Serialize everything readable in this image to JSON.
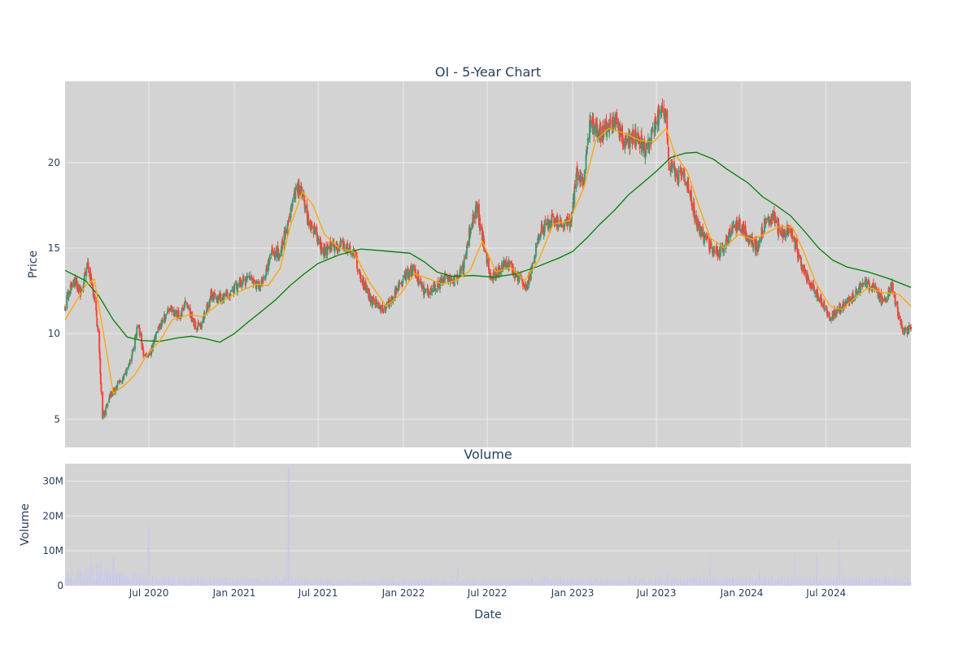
{
  "chart_data": [
    {
      "type": "candlestick",
      "title": "OI - 5-Year Chart",
      "ylabel": "Price",
      "ylim": [
        3.35,
        24.75
      ],
      "yticks": [
        5,
        10,
        15,
        20
      ],
      "xlim": [
        "2020-01-02",
        "2024-12-31"
      ],
      "grid": true,
      "colors": {
        "increasing": "#3d9970",
        "decreasing": "#ff4136",
        "ma_short": "#ffa500",
        "ma_long": "#008000",
        "plot_bg": "#d3d3d3",
        "grid": "#ebebeb"
      },
      "price_path": [
        [
          "2020-01-02",
          11.6
        ],
        [
          "2020-01-20",
          13.2
        ],
        [
          "2020-02-05",
          12.4
        ],
        [
          "2020-02-20",
          14.0
        ],
        [
          "2020-03-05",
          12.2
        ],
        [
          "2020-03-15",
          9.5
        ],
        [
          "2020-03-23",
          5.0
        ],
        [
          "2020-04-05",
          6.2
        ],
        [
          "2020-04-20",
          6.8
        ],
        [
          "2020-05-10",
          7.5
        ],
        [
          "2020-05-25",
          8.8
        ],
        [
          "2020-06-08",
          10.6
        ],
        [
          "2020-06-20",
          8.6
        ],
        [
          "2020-07-05",
          9.0
        ],
        [
          "2020-07-25",
          10.5
        ],
        [
          "2020-08-15",
          11.5
        ],
        [
          "2020-09-05",
          11.0
        ],
        [
          "2020-09-20",
          11.8
        ],
        [
          "2020-10-10",
          10.3
        ],
        [
          "2020-10-25",
          10.7
        ],
        [
          "2020-11-12",
          12.3
        ],
        [
          "2020-12-05",
          12.0
        ],
        [
          "2020-12-25",
          12.4
        ],
        [
          "2021-01-15",
          13.0
        ],
        [
          "2021-02-05",
          13.2
        ],
        [
          "2021-02-25",
          12.6
        ],
        [
          "2021-03-10",
          13.6
        ],
        [
          "2021-03-25",
          14.9
        ],
        [
          "2021-04-10",
          14.6
        ],
        [
          "2021-04-25",
          16.5
        ],
        [
          "2021-05-10",
          18.2
        ],
        [
          "2021-05-25",
          18.5
        ],
        [
          "2021-06-08",
          16.8
        ],
        [
          "2021-06-25",
          16.0
        ],
        [
          "2021-07-10",
          14.8
        ],
        [
          "2021-08-01",
          15.0
        ],
        [
          "2021-08-20",
          15.3
        ],
        [
          "2021-09-15",
          14.8
        ],
        [
          "2021-10-05",
          13.0
        ],
        [
          "2021-10-25",
          11.9
        ],
        [
          "2021-11-20",
          11.4
        ],
        [
          "2021-12-10",
          12.2
        ],
        [
          "2022-01-05",
          13.4
        ],
        [
          "2022-01-25",
          13.8
        ],
        [
          "2022-02-15",
          12.3
        ],
        [
          "2022-03-10",
          12.7
        ],
        [
          "2022-04-01",
          13.2
        ],
        [
          "2022-04-20",
          13.0
        ],
        [
          "2022-05-10",
          13.8
        ],
        [
          "2022-05-28",
          16.6
        ],
        [
          "2022-06-08",
          17.4
        ],
        [
          "2022-06-25",
          15.0
        ],
        [
          "2022-07-10",
          13.2
        ],
        [
          "2022-07-25",
          13.6
        ],
        [
          "2022-08-10",
          14.3
        ],
        [
          "2022-09-01",
          13.4
        ],
        [
          "2022-09-25",
          12.8
        ],
        [
          "2022-10-10",
          14.5
        ],
        [
          "2022-10-25",
          16.2
        ],
        [
          "2022-11-15",
          16.6
        ],
        [
          "2022-12-10",
          16.5
        ],
        [
          "2022-12-28",
          16.6
        ],
        [
          "2023-01-10",
          19.3
        ],
        [
          "2023-01-25",
          18.8
        ],
        [
          "2023-02-08",
          22.5
        ],
        [
          "2023-02-25",
          21.6
        ],
        [
          "2023-03-15",
          22.0
        ],
        [
          "2023-04-05",
          22.4
        ],
        [
          "2023-04-25",
          21.0
        ],
        [
          "2023-05-15",
          21.6
        ],
        [
          "2023-06-05",
          20.8
        ],
        [
          "2023-06-20",
          21.5
        ],
        [
          "2023-07-05",
          22.8
        ],
        [
          "2023-07-20",
          23.0
        ],
        [
          "2023-07-28",
          20.0
        ],
        [
          "2023-08-15",
          19.3
        ],
        [
          "2023-09-05",
          19.0
        ],
        [
          "2023-09-25",
          16.5
        ],
        [
          "2023-10-10",
          15.6
        ],
        [
          "2023-10-28",
          15.0
        ],
        [
          "2023-11-15",
          14.7
        ],
        [
          "2023-12-05",
          15.8
        ],
        [
          "2023-12-25",
          16.5
        ],
        [
          "2024-01-15",
          15.6
        ],
        [
          "2024-02-05",
          15.0
        ],
        [
          "2024-02-20",
          16.6
        ],
        [
          "2024-03-10",
          16.8
        ],
        [
          "2024-03-25",
          15.8
        ],
        [
          "2024-04-10",
          16.2
        ],
        [
          "2024-04-28",
          15.0
        ],
        [
          "2024-05-15",
          13.5
        ],
        [
          "2024-06-01",
          12.8
        ],
        [
          "2024-06-20",
          11.9
        ],
        [
          "2024-07-10",
          10.9
        ],
        [
          "2024-07-25",
          11.4
        ],
        [
          "2024-08-15",
          11.8
        ],
        [
          "2024-09-05",
          12.5
        ],
        [
          "2024-09-25",
          12.9
        ],
        [
          "2024-10-15",
          12.6
        ],
        [
          "2024-11-01",
          11.7
        ],
        [
          "2024-11-20",
          12.8
        ],
        [
          "2024-12-05",
          11.0
        ],
        [
          "2024-12-15",
          10.1
        ],
        [
          "2024-12-31",
          10.3
        ]
      ],
      "ma_short_path": [
        [
          "2020-01-02",
          10.8
        ],
        [
          "2020-02-15",
          12.8
        ],
        [
          "2020-03-05",
          13.2
        ],
        [
          "2020-03-25",
          10.0
        ],
        [
          "2020-04-15",
          6.5
        ],
        [
          "2020-05-10",
          7.0
        ],
        [
          "2020-06-01",
          7.6
        ],
        [
          "2020-06-25",
          8.7
        ],
        [
          "2020-07-25",
          9.6
        ],
        [
          "2020-08-20",
          10.8
        ],
        [
          "2020-09-25",
          11.1
        ],
        [
          "2020-10-25",
          11.0
        ],
        [
          "2020-12-01",
          11.8
        ],
        [
          "2021-01-15",
          12.5
        ],
        [
          "2021-02-20",
          12.9
        ],
        [
          "2021-03-15",
          12.8
        ],
        [
          "2021-04-10",
          13.8
        ],
        [
          "2021-05-01",
          16.2
        ],
        [
          "2021-05-28",
          18.3
        ],
        [
          "2021-06-20",
          17.5
        ],
        [
          "2021-07-15",
          15.8
        ],
        [
          "2021-08-15",
          15.0
        ],
        [
          "2021-09-15",
          14.8
        ],
        [
          "2021-10-20",
          13.0
        ],
        [
          "2021-11-25",
          11.6
        ],
        [
          "2021-12-25",
          12.3
        ],
        [
          "2022-01-25",
          13.5
        ],
        [
          "2022-02-25",
          13.2
        ],
        [
          "2022-03-25",
          12.9
        ],
        [
          "2022-04-25",
          13.1
        ],
        [
          "2022-05-25",
          13.7
        ],
        [
          "2022-06-20",
          15.4
        ],
        [
          "2022-07-20",
          13.6
        ],
        [
          "2022-08-20",
          13.9
        ],
        [
          "2022-09-20",
          13.1
        ],
        [
          "2022-10-20",
          14.3
        ],
        [
          "2022-11-20",
          16.4
        ],
        [
          "2022-12-25",
          16.6
        ],
        [
          "2023-01-25",
          18.5
        ],
        [
          "2023-02-20",
          21.3
        ],
        [
          "2023-03-20",
          22.0
        ],
        [
          "2023-04-25",
          21.7
        ],
        [
          "2023-05-25",
          21.3
        ],
        [
          "2023-06-25",
          21.2
        ],
        [
          "2023-07-22",
          22.0
        ],
        [
          "2023-08-10",
          20.5
        ],
        [
          "2023-09-05",
          19.5
        ],
        [
          "2023-09-30",
          17.5
        ],
        [
          "2023-10-25",
          15.6
        ],
        [
          "2023-11-25",
          15.0
        ],
        [
          "2023-12-25",
          15.8
        ],
        [
          "2024-01-25",
          15.5
        ],
        [
          "2024-02-25",
          15.9
        ],
        [
          "2024-03-25",
          16.3
        ],
        [
          "2024-04-20",
          16.2
        ],
        [
          "2024-05-15",
          14.7
        ],
        [
          "2024-06-10",
          12.9
        ],
        [
          "2024-07-10",
          11.6
        ],
        [
          "2024-08-05",
          11.4
        ],
        [
          "2024-09-01",
          12.1
        ],
        [
          "2024-10-01",
          12.7
        ],
        [
          "2024-11-01",
          12.4
        ],
        [
          "2024-12-05",
          12.3
        ],
        [
          "2024-12-31",
          11.6
        ]
      ],
      "ma_long_path": [
        [
          "2020-01-02",
          13.7
        ],
        [
          "2020-02-15",
          13.1
        ],
        [
          "2020-03-15",
          12.2
        ],
        [
          "2020-04-15",
          10.8
        ],
        [
          "2020-05-15",
          9.8
        ],
        [
          "2020-06-15",
          9.6
        ],
        [
          "2020-07-25",
          9.55
        ],
        [
          "2020-09-01",
          9.75
        ],
        [
          "2020-10-01",
          9.85
        ],
        [
          "2020-11-01",
          9.7
        ],
        [
          "2020-12-01",
          9.5
        ],
        [
          "2021-01-01",
          10.0
        ],
        [
          "2021-02-01",
          10.7
        ],
        [
          "2021-03-01",
          11.3
        ],
        [
          "2021-04-01",
          12.0
        ],
        [
          "2021-05-01",
          12.8
        ],
        [
          "2021-06-01",
          13.5
        ],
        [
          "2021-07-01",
          14.1
        ],
        [
          "2021-08-15",
          14.6
        ],
        [
          "2021-10-01",
          14.95
        ],
        [
          "2021-11-15",
          14.85
        ],
        [
          "2022-01-15",
          14.7
        ],
        [
          "2022-02-15",
          14.2
        ],
        [
          "2022-03-15",
          13.6
        ],
        [
          "2022-04-15",
          13.35
        ],
        [
          "2022-06-01",
          13.4
        ],
        [
          "2022-07-15",
          13.3
        ],
        [
          "2022-09-01",
          13.5
        ],
        [
          "2022-10-15",
          13.9
        ],
        [
          "2022-12-01",
          14.4
        ],
        [
          "2023-01-01",
          14.8
        ],
        [
          "2023-02-01",
          15.6
        ],
        [
          "2023-03-01",
          16.4
        ],
        [
          "2023-04-01",
          17.2
        ],
        [
          "2023-05-01",
          18.1
        ],
        [
          "2023-06-01",
          18.8
        ],
        [
          "2023-07-01",
          19.5
        ],
        [
          "2023-08-01",
          20.3
        ],
        [
          "2023-09-01",
          20.55
        ],
        [
          "2023-09-25",
          20.6
        ],
        [
          "2023-11-01",
          20.2
        ],
        [
          "2023-12-01",
          19.6
        ],
        [
          "2024-01-15",
          18.8
        ],
        [
          "2024-02-15",
          18.0
        ],
        [
          "2024-03-15",
          17.5
        ],
        [
          "2024-04-15",
          16.9
        ],
        [
          "2024-05-15",
          16.0
        ],
        [
          "2024-06-15",
          15.0
        ],
        [
          "2024-07-15",
          14.3
        ],
        [
          "2024-08-15",
          13.9
        ],
        [
          "2024-10-01",
          13.6
        ],
        [
          "2024-11-15",
          13.2
        ],
        [
          "2024-12-31",
          12.7
        ]
      ]
    },
    {
      "type": "bar",
      "title": "Volume",
      "xlabel": "Date",
      "ylabel": "Volume",
      "ylim": [
        0,
        35000000
      ],
      "yticks": [
        0,
        10000000,
        20000000,
        30000000
      ],
      "ytick_labels": [
        "0",
        "10M",
        "20M",
        "30M"
      ],
      "xticks": [
        "2020-07-01",
        "2021-01-01",
        "2021-07-01",
        "2022-01-01",
        "2022-07-01",
        "2023-01-01",
        "2023-07-01",
        "2024-01-01",
        "2024-07-01"
      ],
      "xtick_labels": [
        "Jul 2020",
        "Jan 2021",
        "Jul 2021",
        "Jan 2022",
        "Jul 2022",
        "Jan 2023",
        "Jul 2023",
        "Jan 2024",
        "Jul 2024"
      ],
      "grid": true,
      "bar_color": "#c8c8f0",
      "baseline_path": [
        [
          "2020-01-02",
          2800000
        ],
        [
          "2020-03-01",
          4000000
        ],
        [
          "2020-04-15",
          3200000
        ],
        [
          "2020-07-01",
          2000000
        ],
        [
          "2021-01-01",
          1600000
        ],
        [
          "2021-04-01",
          1700000
        ],
        [
          "2021-07-01",
          1300000
        ],
        [
          "2022-01-01",
          1300000
        ],
        [
          "2022-07-01",
          1400000
        ],
        [
          "2022-11-01",
          1700000
        ],
        [
          "2023-03-01",
          1400000
        ],
        [
          "2023-07-01",
          1400000
        ],
        [
          "2023-10-15",
          1900000
        ],
        [
          "2024-01-01",
          1800000
        ],
        [
          "2024-04-01",
          1900000
        ],
        [
          "2024-07-01",
          1800000
        ],
        [
          "2024-12-31",
          1700000
        ]
      ],
      "spikes": [
        [
          "2020-02-25",
          5000000
        ],
        [
          "2020-03-12",
          6500000
        ],
        [
          "2020-03-20",
          7500000
        ],
        [
          "2020-04-15",
          8000000
        ],
        [
          "2020-06-30",
          17000000
        ],
        [
          "2021-04-28",
          34000000
        ],
        [
          "2021-04-24",
          9000000
        ],
        [
          "2022-04-28",
          5000000
        ],
        [
          "2023-07-25",
          4500000
        ],
        [
          "2023-10-25",
          5000000
        ],
        [
          "2024-02-08",
          4500000
        ],
        [
          "2024-04-25",
          5000000
        ],
        [
          "2024-06-10",
          9000000
        ],
        [
          "2024-07-30",
          7500000
        ]
      ]
    }
  ]
}
